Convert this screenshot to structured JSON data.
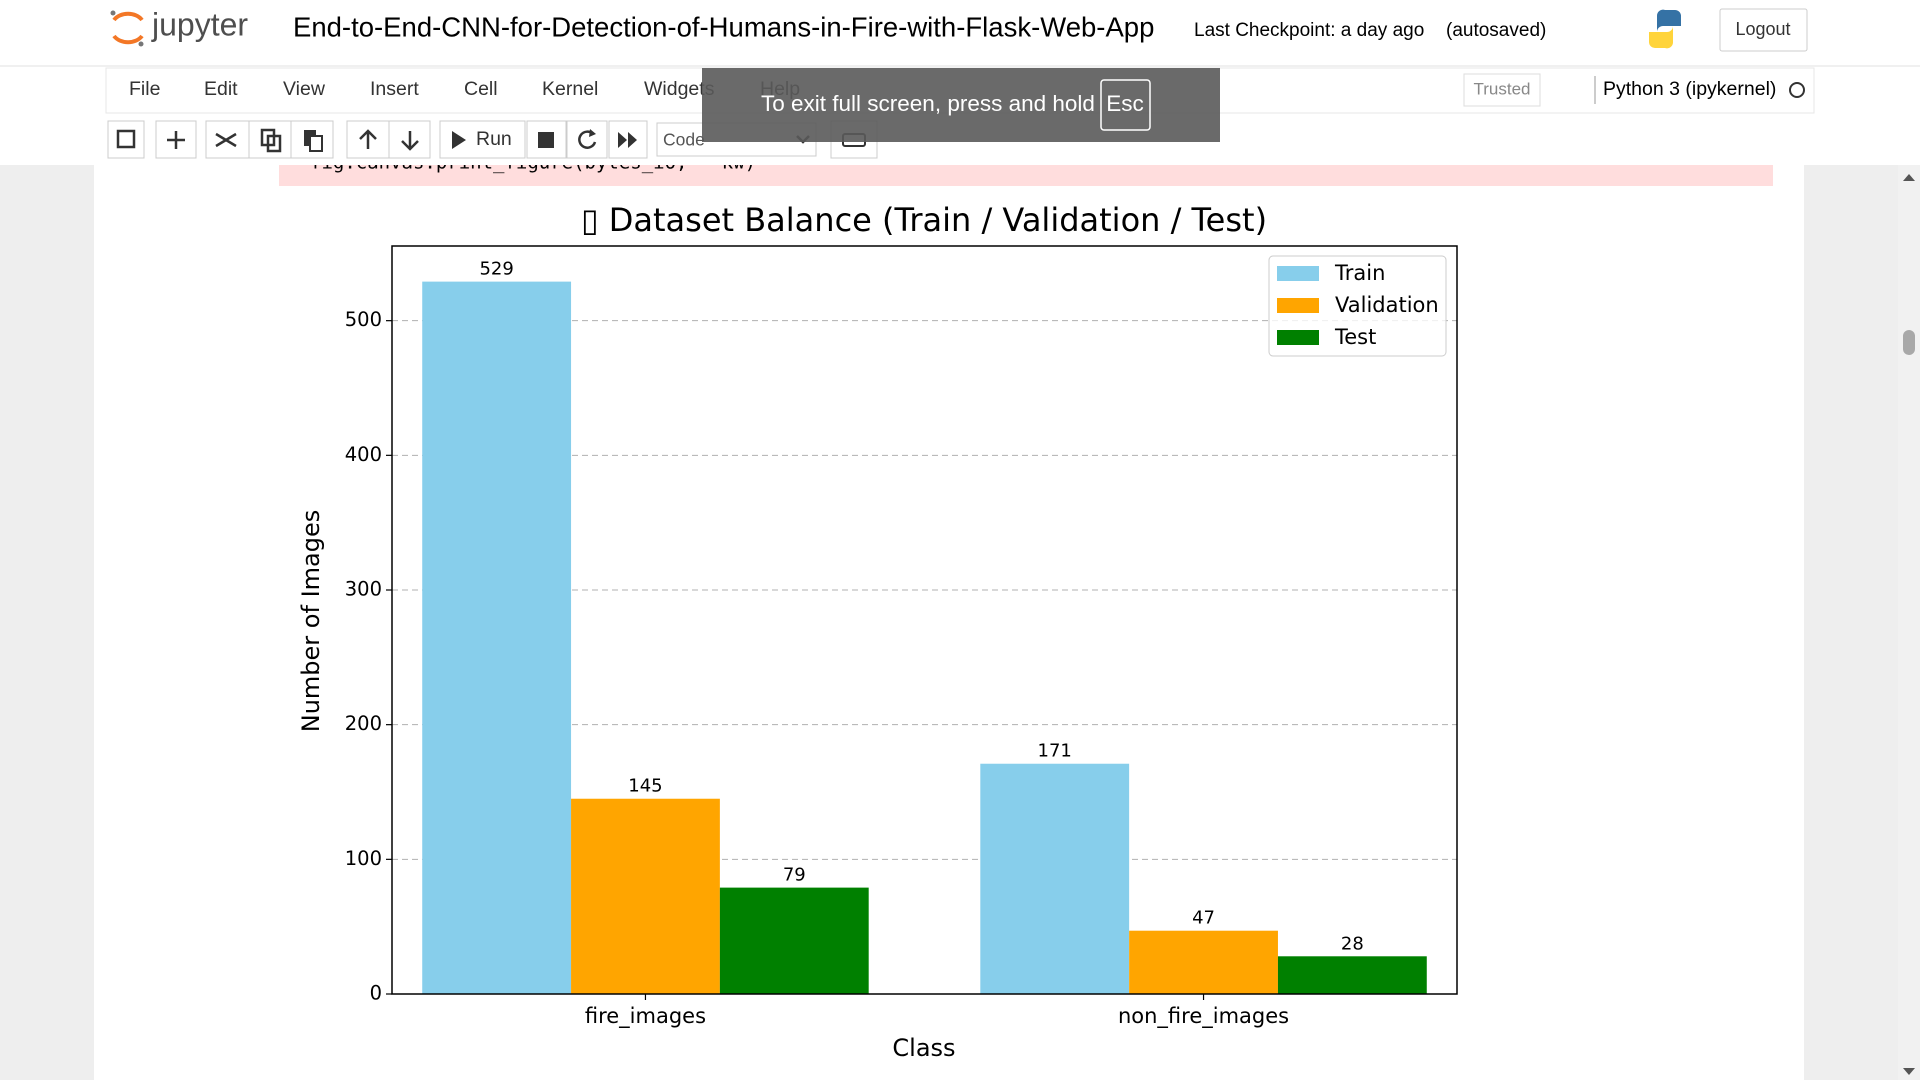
{
  "header": {
    "logo": "jupyter",
    "notebook_title": "End-to-End-CNN-for-Detection-of-Humans-in-Fire-with-Flask-Web-App",
    "checkpoint": "Last Checkpoint: a day ago",
    "autosave": "(autosaved)",
    "logout": "Logout"
  },
  "menu": {
    "items": [
      "File",
      "Edit",
      "View",
      "Insert",
      "Cell",
      "Kernel",
      "Widgets",
      "Help"
    ],
    "trusted": "Trusted",
    "kernel": "Python 3 (ipykernel)"
  },
  "toolbar": {
    "run": "Run",
    "cell_type": "Code"
  },
  "overlay": {
    "message": "To exit full screen, press and hold",
    "key": "Esc"
  },
  "error_output": "fig.canvas.print_figure(bytes_io, **kw)",
  "chart_data": {
    "type": "bar",
    "title": "▯ Dataset Balance (Train / Validation / Test)",
    "x_label": "Class",
    "y_label": "Number of Images",
    "categories": [
      "fire_images",
      "non_fire_images"
    ],
    "series": [
      {
        "name": "Train",
        "color": "#87ceeb",
        "values": [
          529,
          171
        ]
      },
      {
        "name": "Validation",
        "color": "#ffa500",
        "values": [
          145,
          47
        ]
      },
      {
        "name": "Test",
        "color": "#008000",
        "values": [
          79,
          28
        ]
      }
    ],
    "ylim": [
      0,
      555.45
    ],
    "yticks": [
      0,
      100,
      200,
      300,
      400,
      500
    ],
    "grid": true,
    "legend": "upper right"
  }
}
